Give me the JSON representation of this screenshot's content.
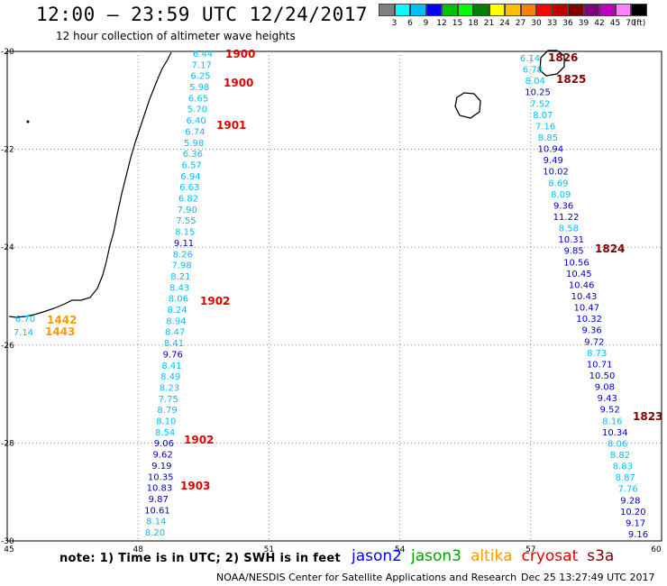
{
  "header": {
    "title": "12:00 – 23:59 UTC 12/24/2017",
    "subtitle": "12 hour collection of altimeter wave heights"
  },
  "legend": {
    "colors": [
      "#808080",
      "#00ffff",
      "#00bfff",
      "#0000ff",
      "#00c000",
      "#00ff00",
      "#008000",
      "#ffff00",
      "#ffbf00",
      "#ff8000",
      "#ff0000",
      "#c00000",
      "#800000",
      "#800080",
      "#c000c0",
      "#ff80ff",
      "#000000"
    ],
    "labels": [
      "3",
      "6",
      "9",
      "12",
      "15",
      "18",
      "21",
      "24",
      "27",
      "30",
      "33",
      "36",
      "39",
      "42",
      "45",
      "70",
      "(ft)"
    ]
  },
  "map": {
    "lon_ticks": [
      "45",
      "48",
      "51",
      "54",
      "57",
      "60"
    ],
    "lat_ticks": [
      "-20",
      "-22",
      "-24",
      "-26",
      "-28",
      "-30"
    ],
    "lon_range": [
      45,
      60
    ],
    "lat_range": [
      -20,
      -30
    ],
    "track_west": [
      {
        "v": "6.44",
        "c": "#00bfff"
      },
      {
        "v": "7.17",
        "c": "#00bfff"
      },
      {
        "v": "6.25",
        "c": "#00bfff"
      },
      {
        "v": "5.98",
        "c": "#00bfff"
      },
      {
        "v": "6.65",
        "c": "#00bfff"
      },
      {
        "v": "5.70",
        "c": "#00bfff"
      },
      {
        "v": "6.40",
        "c": "#00bfff"
      },
      {
        "v": "6.74",
        "c": "#00bfff"
      },
      {
        "v": "5.98",
        "c": "#00bfff"
      },
      {
        "v": "6.36",
        "c": "#00bfff"
      },
      {
        "v": "6.57",
        "c": "#00bfff"
      },
      {
        "v": "6.94",
        "c": "#00bfff"
      },
      {
        "v": "6.63",
        "c": "#00bfff"
      },
      {
        "v": "6.82",
        "c": "#00bfff"
      },
      {
        "v": "7.90",
        "c": "#00bfff"
      },
      {
        "v": "7.55",
        "c": "#00bfff"
      },
      {
        "v": "8.15",
        "c": "#00bfff"
      },
      {
        "v": "9.11",
        "c": "#0000c0"
      },
      {
        "v": "8.26",
        "c": "#00bfff"
      },
      {
        "v": "7.98",
        "c": "#00bfff"
      },
      {
        "v": "8.21",
        "c": "#00bfff"
      },
      {
        "v": "8.43",
        "c": "#00bfff"
      },
      {
        "v": "8.06",
        "c": "#00bfff"
      },
      {
        "v": "8.24",
        "c": "#00bfff"
      },
      {
        "v": "8.94",
        "c": "#00bfff"
      },
      {
        "v": "8.47",
        "c": "#00bfff"
      },
      {
        "v": "8.41",
        "c": "#00bfff"
      },
      {
        "v": "9.76",
        "c": "#0000c0"
      },
      {
        "v": "8.41",
        "c": "#00bfff"
      },
      {
        "v": "8.49",
        "c": "#00bfff"
      },
      {
        "v": "8.23",
        "c": "#00bfff"
      },
      {
        "v": "7.75",
        "c": "#00bfff"
      },
      {
        "v": "8.79",
        "c": "#00bfff"
      },
      {
        "v": "8.10",
        "c": "#00bfff"
      },
      {
        "v": "8.54",
        "c": "#00bfff"
      },
      {
        "v": "9.06",
        "c": "#0000c0"
      },
      {
        "v": "9.62",
        "c": "#0000c0"
      },
      {
        "v": "9.19",
        "c": "#0000c0"
      },
      {
        "v": "10.35",
        "c": "#0000c0"
      },
      {
        "v": "10.83",
        "c": "#0000c0"
      },
      {
        "v": "9.87",
        "c": "#0000c0"
      },
      {
        "v": "10.61",
        "c": "#0000c0"
      },
      {
        "v": "8.14",
        "c": "#00bfff"
      },
      {
        "v": "8.20",
        "c": "#00bfff"
      }
    ],
    "track_east": [
      {
        "v": "6.14",
        "c": "#00bfff"
      },
      {
        "v": "6.78",
        "c": "#00bfff"
      },
      {
        "v": "8.04",
        "c": "#00bfff"
      },
      {
        "v": "10.25",
        "c": "#0000c0"
      },
      {
        "v": "7.52",
        "c": "#00bfff"
      },
      {
        "v": "8.07",
        "c": "#00bfff"
      },
      {
        "v": "7.16",
        "c": "#00bfff"
      },
      {
        "v": "8.85",
        "c": "#00bfff"
      },
      {
        "v": "10.94",
        "c": "#0000c0"
      },
      {
        "v": "9.49",
        "c": "#0000c0"
      },
      {
        "v": "10.02",
        "c": "#0000c0"
      },
      {
        "v": "8.69",
        "c": "#00bfff"
      },
      {
        "v": "8.09",
        "c": "#00bfff"
      },
      {
        "v": "9.36",
        "c": "#0000c0"
      },
      {
        "v": "11.22",
        "c": "#0000c0"
      },
      {
        "v": "8.58",
        "c": "#00bfff"
      },
      {
        "v": "10.31",
        "c": "#0000c0"
      },
      {
        "v": "9.85",
        "c": "#0000c0"
      },
      {
        "v": "10.56",
        "c": "#0000c0"
      },
      {
        "v": "10.45",
        "c": "#0000c0"
      },
      {
        "v": "10.46",
        "c": "#0000c0"
      },
      {
        "v": "10.43",
        "c": "#0000c0"
      },
      {
        "v": "10.47",
        "c": "#0000c0"
      },
      {
        "v": "10.32",
        "c": "#0000c0"
      },
      {
        "v": "9.36",
        "c": "#0000c0"
      },
      {
        "v": "9.72",
        "c": "#0000c0"
      },
      {
        "v": "8.73",
        "c": "#00bfff"
      },
      {
        "v": "10.71",
        "c": "#0000c0"
      },
      {
        "v": "10.50",
        "c": "#0000c0"
      },
      {
        "v": "9.08",
        "c": "#0000c0"
      },
      {
        "v": "9.43",
        "c": "#0000c0"
      },
      {
        "v": "9.52",
        "c": "#0000c0"
      },
      {
        "v": "8.16",
        "c": "#00bfff"
      },
      {
        "v": "10.34",
        "c": "#0000c0"
      },
      {
        "v": "8.06",
        "c": "#00bfff"
      },
      {
        "v": "8.82",
        "c": "#00bfff"
      },
      {
        "v": "8.83",
        "c": "#00bfff"
      },
      {
        "v": "8.87",
        "c": "#00bfff"
      },
      {
        "v": "7.76",
        "c": "#00bfff"
      },
      {
        "v": "9.28",
        "c": "#0000c0"
      },
      {
        "v": "10.20",
        "c": "#0000c0"
      },
      {
        "v": "9.17",
        "c": "#0000c0"
      },
      {
        "v": "9.16",
        "c": "#0000c0"
      }
    ],
    "track_altika": [
      {
        "v": "6.70",
        "c": "#00bfff"
      },
      {
        "v": "7.14",
        "c": "#00bfff"
      }
    ],
    "time_labels": [
      {
        "t": "1900",
        "c": "#e00000"
      },
      {
        "t": "1900",
        "c": "#e00000"
      },
      {
        "t": "1901",
        "c": "#e00000"
      },
      {
        "t": "1902",
        "c": "#e00000"
      },
      {
        "t": "1902",
        "c": "#e00000"
      },
      {
        "t": "1903",
        "c": "#e00000"
      },
      {
        "t": "1442",
        "c": "#ff9900"
      },
      {
        "t": "1443",
        "c": "#ff9900"
      },
      {
        "t": "1826",
        "c": "#800000"
      },
      {
        "t": "1825",
        "c": "#800000"
      },
      {
        "t": "1824",
        "c": "#800000"
      },
      {
        "t": "1823",
        "c": "#800000"
      }
    ]
  },
  "footer": {
    "note": "note:  1) Time is in UTC;  2) SWH is in feet",
    "satellites": [
      {
        "name": "jason2",
        "color": "#0000ff"
      },
      {
        "name": "jason3",
        "color": "#00a000"
      },
      {
        "name": "altika",
        "color": "#ff9900"
      },
      {
        "name": "cryosat",
        "color": "#e00000"
      },
      {
        "name": "s3a",
        "color": "#800000"
      }
    ],
    "credit": "NOAA/NESDIS Center for Satellite Applications and Research",
    "timestamp": "Dec 25 13:27:49 UTC 2017"
  }
}
